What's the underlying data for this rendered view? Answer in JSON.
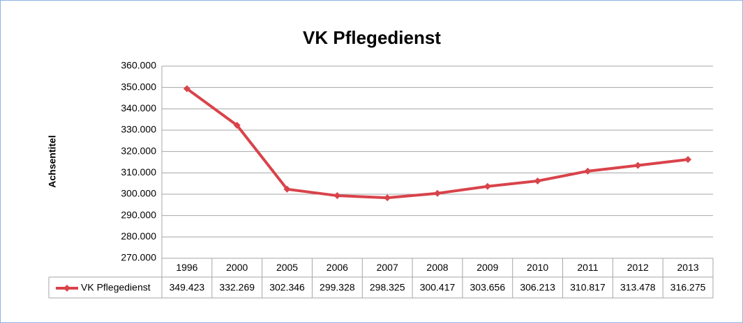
{
  "chart_data": {
    "type": "line",
    "title": "VK Pflegedienst",
    "y_label": "Achsentitel",
    "categories": [
      "1996",
      "2000",
      "2005",
      "2006",
      "2007",
      "2008",
      "2009",
      "2010",
      "2011",
      "2012",
      "2013"
    ],
    "series": [
      {
        "name": "VK Pflegedienst",
        "color": "#d9434a",
        "values": [
          349423,
          332269,
          302346,
          299328,
          298325,
          300417,
          303656,
          306213,
          310817,
          313478,
          316275
        ],
        "value_labels": [
          "349.423",
          "332.269",
          "302.346",
          "299.328",
          "298.325",
          "300.417",
          "303.656",
          "306.213",
          "310.817",
          "313.478",
          "316.275"
        ]
      }
    ],
    "ylim": [
      270000,
      360000
    ],
    "yticks": [
      {
        "value": 270000,
        "label": "270.000"
      },
      {
        "value": 280000,
        "label": "280.000"
      },
      {
        "value": 290000,
        "label": "290.000"
      },
      {
        "value": 300000,
        "label": "300.000"
      },
      {
        "value": 310000,
        "label": "310.000"
      },
      {
        "value": 320000,
        "label": "320.000"
      },
      {
        "value": 330000,
        "label": "330.000"
      },
      {
        "value": 340000,
        "label": "340.000"
      },
      {
        "value": 350000,
        "label": "350.000"
      },
      {
        "value": 360000,
        "label": "360.000"
      }
    ],
    "grid": true
  }
}
